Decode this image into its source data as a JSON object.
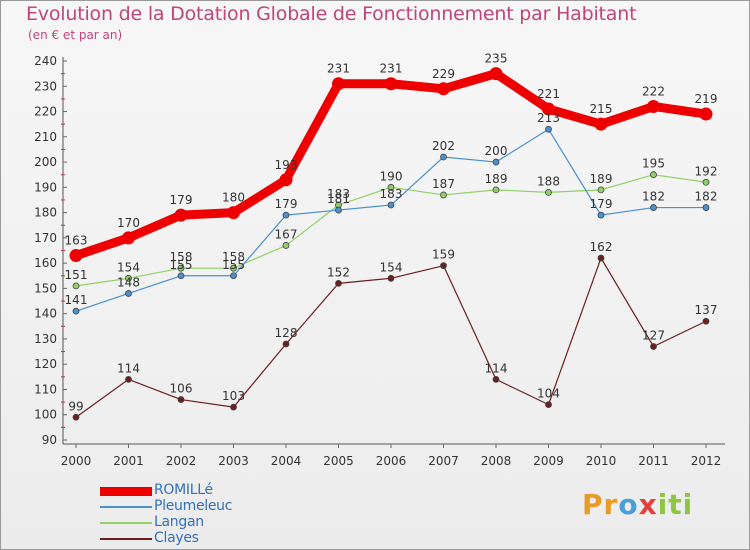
{
  "title": "Evolution de la Dotation Globale de Fonctionnement par Habitant",
  "subtitle": "(en € et par an)",
  "logo": "Proxiti",
  "chart_data": {
    "type": "line",
    "x": [
      2000,
      2001,
      2002,
      2003,
      2004,
      2005,
      2006,
      2007,
      2008,
      2009,
      2010,
      2011,
      2012
    ],
    "ylim": [
      90,
      240
    ],
    "yticks": [
      90,
      100,
      110,
      120,
      130,
      140,
      150,
      160,
      170,
      180,
      190,
      200,
      210,
      220,
      230,
      240
    ],
    "grid": false,
    "legend_position": "bottom-left",
    "series": [
      {
        "name": "ROMILLé",
        "color": "#ee0000",
        "values": [
          163,
          170,
          179,
          180,
          193,
          231,
          231,
          229,
          235,
          221,
          215,
          222,
          219
        ]
      },
      {
        "name": "Pleumeleuc",
        "color": "#4a8fcf",
        "values": [
          141,
          148,
          155,
          155,
          179,
          181,
          183,
          202,
          200,
          213,
          179,
          182,
          182
        ]
      },
      {
        "name": "Langan",
        "color": "#8fd166",
        "values": [
          151,
          154,
          158,
          158,
          167,
          183,
          190,
          187,
          189,
          188,
          189,
          195,
          192
        ]
      },
      {
        "name": "Clayes",
        "color": "#6b1f1f",
        "values": [
          99,
          114,
          106,
          103,
          128,
          152,
          154,
          159,
          114,
          104,
          162,
          127,
          137
        ]
      }
    ]
  }
}
